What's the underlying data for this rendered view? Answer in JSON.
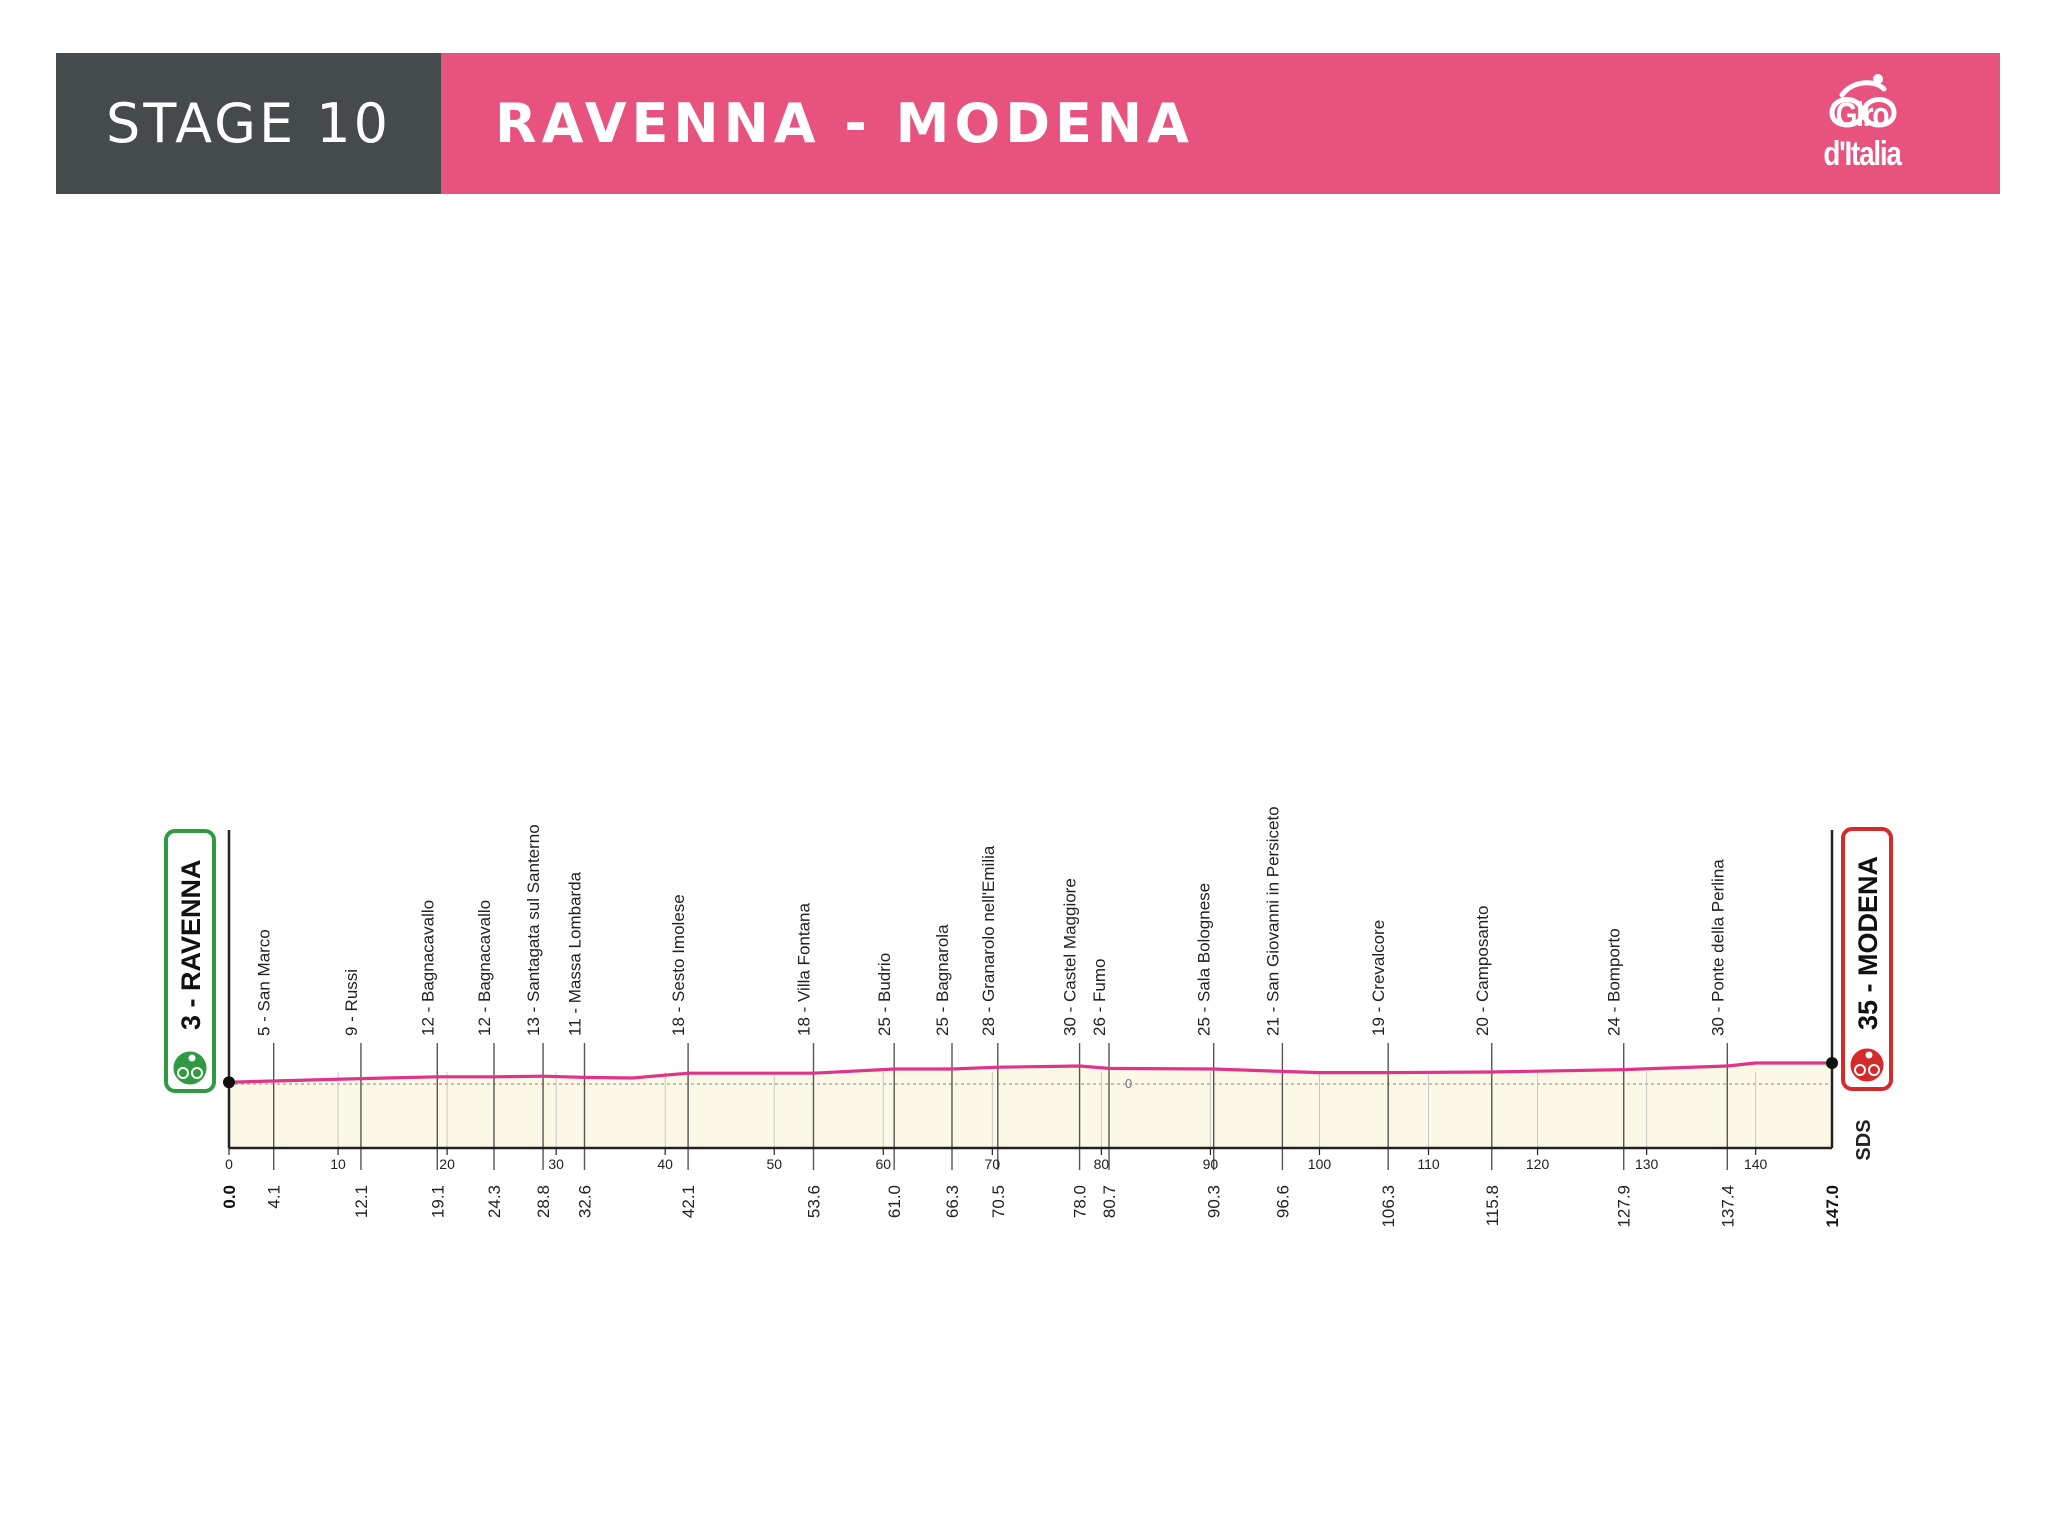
{
  "header": {
    "stage_label": "STAGE 10",
    "route_title": "RAVENNA - MODENA",
    "logo_text": "Giro d'Italia",
    "colors": {
      "header_dark": "#454a4c",
      "header_pink": "#e8527e",
      "profile_line": "#e0338a",
      "profile_fill": "#fbf9e6",
      "start_green": "#2f9a41",
      "finish_red": "#d42a2a"
    }
  },
  "chart_data": {
    "type": "area",
    "title": "",
    "xlabel": "",
    "ylabel": "",
    "xlim": [
      0,
      147
    ],
    "x_ticks": [
      0,
      10,
      20,
      30,
      40,
      50,
      60,
      70,
      80,
      90,
      100,
      110,
      120,
      130,
      140
    ],
    "x_tick_labels": [
      "0",
      "10",
      "20",
      "30",
      "40",
      "50",
      "60",
      "70",
      "80",
      "90",
      "100",
      "110",
      "120",
      "130",
      "140"
    ],
    "altitude_reference_label": "0",
    "start": {
      "km_label": "0.0",
      "label": "3 - RAVENNA",
      "km": 0,
      "altitude": 3
    },
    "finish": {
      "km_label": "147.0",
      "label": "35 - MODENA",
      "km": 147,
      "altitude": 35
    },
    "profile": {
      "x": [
        0,
        4.1,
        12.1,
        19.1,
        24.3,
        28.8,
        32.6,
        37,
        42.1,
        53.6,
        61,
        66.3,
        70.5,
        78,
        80.7,
        90.3,
        96.6,
        100,
        106.3,
        115.8,
        127.9,
        137.4,
        140,
        147
      ],
      "y": [
        3,
        5,
        9,
        12,
        12,
        13,
        11,
        10,
        18,
        18,
        25,
        25,
        28,
        30,
        26,
        25,
        21,
        19,
        19,
        20,
        24,
        30,
        35,
        35
      ]
    },
    "waypoints": [
      {
        "km": 4.1,
        "km_label": "4.1",
        "label": "5 - San Marco"
      },
      {
        "km": 12.1,
        "km_label": "12.1",
        "label": "9 - Russi"
      },
      {
        "km": 19.1,
        "km_label": "19.1",
        "label": "12 - Bagnacavallo"
      },
      {
        "km": 24.3,
        "km_label": "24.3",
        "label": "12 - Bagnacavallo"
      },
      {
        "km": 28.8,
        "km_label": "28.8",
        "label": "13 - Santagata sul Santerno"
      },
      {
        "km": 32.6,
        "km_label": "32.6",
        "label": "11 - Massa Lombarda"
      },
      {
        "km": 42.1,
        "km_label": "42.1",
        "label": "18 - Sesto Imolese"
      },
      {
        "km": 53.6,
        "km_label": "53.6",
        "label": "18 - Villa Fontana"
      },
      {
        "km": 61.0,
        "km_label": "61.0",
        "label": "25 - Budrio"
      },
      {
        "km": 66.3,
        "km_label": "66.3",
        "label": "25 - Bagnarola"
      },
      {
        "km": 70.5,
        "km_label": "70.5",
        "label": "28 - Granarolo nell'Emilia"
      },
      {
        "km": 78.0,
        "km_label": "78.0",
        "label": "30 - Castel Maggiore"
      },
      {
        "km": 80.7,
        "km_label": "80.7",
        "label": "26 - Fumo"
      },
      {
        "km": 90.3,
        "km_label": "90.3",
        "label": "25 - Sala Bolognese"
      },
      {
        "km": 96.6,
        "km_label": "96.6",
        "label": "21 - San Giovanni in Persiceto"
      },
      {
        "km": 106.3,
        "km_label": "106.3",
        "label": "19 - Crevalcore"
      },
      {
        "km": 115.8,
        "km_label": "115.8",
        "label": "20 - Camposanto"
      },
      {
        "km": 127.9,
        "km_label": "127.9",
        "label": "24 - Bomporto"
      },
      {
        "km": 137.4,
        "km_label": "137.4",
        "label": "30 - Ponte della Perlina"
      }
    ],
    "brand_mark": "SDS"
  }
}
